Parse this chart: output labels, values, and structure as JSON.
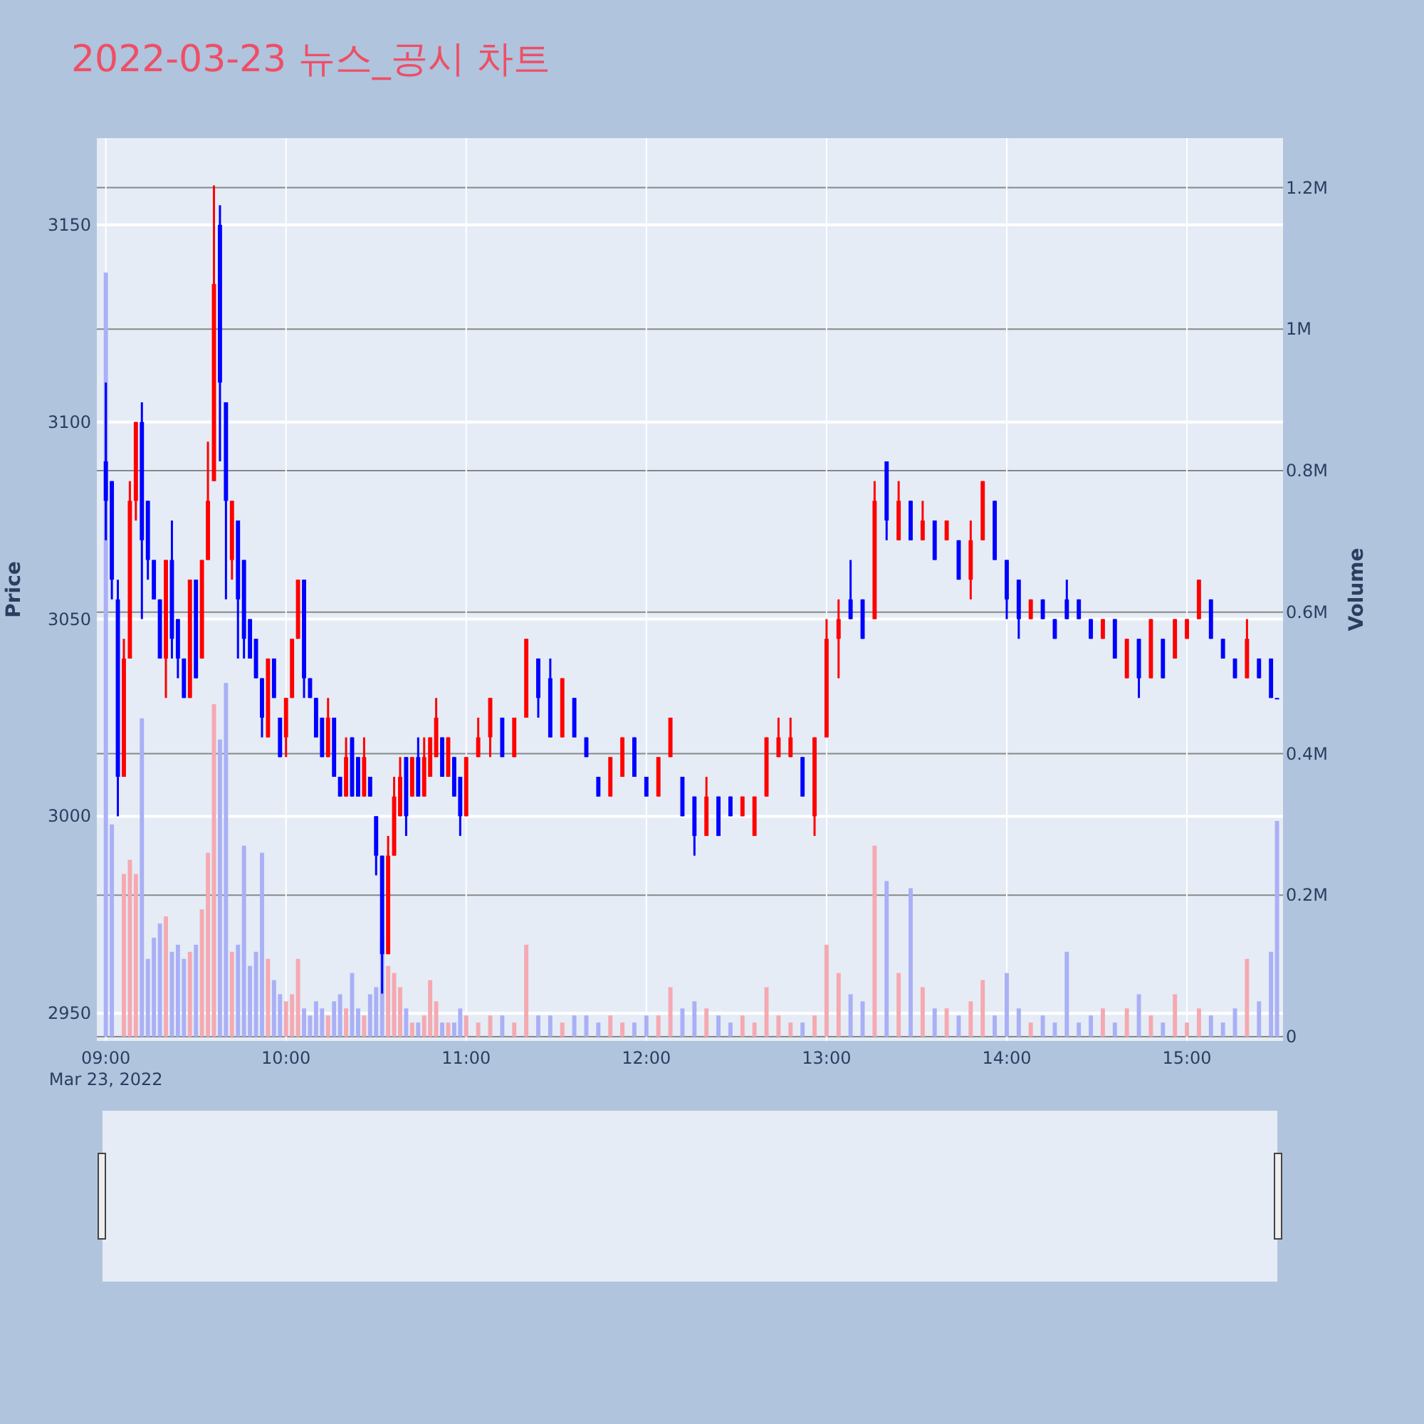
{
  "chart_data": {
    "type": "candlestick",
    "title": "2022-03-23 뉴스_공시 차트",
    "ylabel": "Price",
    "y2label": "Volume",
    "grid": true,
    "xlim": [
      "2022-03-23T08:57",
      "2022-03-23T15:32"
    ],
    "xticks": [
      {
        "value": "2022-03-23T09:00",
        "label": "09:00\nMar 23, 2022"
      },
      {
        "value": "2022-03-23T10:00",
        "label": "10:00"
      },
      {
        "value": "2022-03-23T11:00",
        "label": "11:00"
      },
      {
        "value": "2022-03-23T12:00",
        "label": "12:00"
      },
      {
        "value": "2022-03-23T13:00",
        "label": "13:00"
      },
      {
        "value": "2022-03-23T14:00",
        "label": "14:00"
      },
      {
        "value": "2022-03-23T15:00",
        "label": "15:00"
      }
    ],
    "ylim": [
      2943,
      3172
    ],
    "yticks": [
      2950,
      3000,
      3050,
      3100,
      3150
    ],
    "y2lim": [
      -6000,
      1270000
    ],
    "y2ticks": [
      0,
      {
        "value": 200000,
        "label": "0.2M"
      },
      {
        "value": 400000,
        "label": "0.4M"
      },
      {
        "value": 600000,
        "label": "0.6M"
      },
      {
        "value": 800000,
        "label": "0.8M"
      },
      {
        "value": 1000000,
        "label": "1M"
      },
      {
        "value": 1200000,
        "label": "1.2M"
      }
    ],
    "x": [
      "2022-03-23T09:00",
      "2022-03-23T09:02",
      "2022-03-23T09:04",
      "2022-03-23T09:06",
      "2022-03-23T09:08",
      "2022-03-23T09:10",
      "2022-03-23T09:12",
      "2022-03-23T09:14",
      "2022-03-23T09:16",
      "2022-03-23T09:18",
      "2022-03-23T09:20",
      "2022-03-23T09:22",
      "2022-03-23T09:24",
      "2022-03-23T09:26",
      "2022-03-23T09:28",
      "2022-03-23T09:30",
      "2022-03-23T09:32",
      "2022-03-23T09:34",
      "2022-03-23T09:36",
      "2022-03-23T09:38",
      "2022-03-23T09:40",
      "2022-03-23T09:42",
      "2022-03-23T09:44",
      "2022-03-23T09:46",
      "2022-03-23T09:48",
      "2022-03-23T09:50",
      "2022-03-23T09:52",
      "2022-03-23T09:54",
      "2022-03-23T09:56",
      "2022-03-23T09:58",
      "2022-03-23T10:00",
      "2022-03-23T10:02",
      "2022-03-23T10:04",
      "2022-03-23T10:06",
      "2022-03-23T10:08",
      "2022-03-23T10:10",
      "2022-03-23T10:12",
      "2022-03-23T10:14",
      "2022-03-23T10:16",
      "2022-03-23T10:18",
      "2022-03-23T10:20",
      "2022-03-23T10:22",
      "2022-03-23T10:24",
      "2022-03-23T10:26",
      "2022-03-23T10:28",
      "2022-03-23T10:30",
      "2022-03-23T10:32",
      "2022-03-23T10:34",
      "2022-03-23T10:36",
      "2022-03-23T10:38",
      "2022-03-23T10:40",
      "2022-03-23T10:42",
      "2022-03-23T10:44",
      "2022-03-23T10:46",
      "2022-03-23T10:48",
      "2022-03-23T10:50",
      "2022-03-23T10:52",
      "2022-03-23T10:54",
      "2022-03-23T10:56",
      "2022-03-23T10:58",
      "2022-03-23T11:00",
      "2022-03-23T11:04",
      "2022-03-23T11:08",
      "2022-03-23T11:12",
      "2022-03-23T11:16",
      "2022-03-23T11:20",
      "2022-03-23T11:24",
      "2022-03-23T11:28",
      "2022-03-23T11:32",
      "2022-03-23T11:36",
      "2022-03-23T11:40",
      "2022-03-23T11:44",
      "2022-03-23T11:48",
      "2022-03-23T11:52",
      "2022-03-23T11:56",
      "2022-03-23T12:00",
      "2022-03-23T12:04",
      "2022-03-23T12:08",
      "2022-03-23T12:12",
      "2022-03-23T12:16",
      "2022-03-23T12:20",
      "2022-03-23T12:24",
      "2022-03-23T12:28",
      "2022-03-23T12:32",
      "2022-03-23T12:36",
      "2022-03-23T12:40",
      "2022-03-23T12:44",
      "2022-03-23T12:48",
      "2022-03-23T12:52",
      "2022-03-23T12:56",
      "2022-03-23T13:00",
      "2022-03-23T13:04",
      "2022-03-23T13:08",
      "2022-03-23T13:12",
      "2022-03-23T13:16",
      "2022-03-23T13:20",
      "2022-03-23T13:24",
      "2022-03-23T13:28",
      "2022-03-23T13:32",
      "2022-03-23T13:36",
      "2022-03-23T13:40",
      "2022-03-23T13:44",
      "2022-03-23T13:48",
      "2022-03-23T13:52",
      "2022-03-23T13:56",
      "2022-03-23T14:00",
      "2022-03-23T14:04",
      "2022-03-23T14:08",
      "2022-03-23T14:12",
      "2022-03-23T14:16",
      "2022-03-23T14:20",
      "2022-03-23T14:24",
      "2022-03-23T14:28",
      "2022-03-23T14:32",
      "2022-03-23T14:36",
      "2022-03-23T14:40",
      "2022-03-23T14:44",
      "2022-03-23T14:48",
      "2022-03-23T14:52",
      "2022-03-23T14:56",
      "2022-03-23T15:00",
      "2022-03-23T15:04",
      "2022-03-23T15:08",
      "2022-03-23T15:12",
      "2022-03-23T15:16",
      "2022-03-23T15:20",
      "2022-03-23T15:24",
      "2022-03-23T15:28",
      "2022-03-23T15:30"
    ],
    "series": [
      {
        "ohlc": [
          [
            3090,
            3110,
            3070,
            3080
          ],
          [
            3085,
            3085,
            3055,
            3060
          ],
          [
            3055,
            3060,
            3000,
            3010
          ],
          [
            3010,
            3045,
            3010,
            3040
          ],
          [
            3040,
            3085,
            3040,
            3080
          ],
          [
            3080,
            3100,
            3075,
            3100
          ],
          [
            3100,
            3105,
            3050,
            3070
          ],
          [
            3080,
            3080,
            3060,
            3065
          ],
          [
            3065,
            3065,
            3055,
            3055
          ],
          [
            3055,
            3055,
            3040,
            3040
          ],
          [
            3040,
            3065,
            3030,
            3065
          ],
          [
            3065,
            3075,
            3040,
            3045
          ],
          [
            3050,
            3050,
            3035,
            3040
          ],
          [
            3040,
            3040,
            3030,
            3030
          ],
          [
            3030,
            3060,
            3030,
            3060
          ],
          [
            3060,
            3060,
            3035,
            3035
          ],
          [
            3040,
            3065,
            3040,
            3065
          ],
          [
            3065,
            3095,
            3065,
            3080
          ],
          [
            3085,
            3160,
            3085,
            3135
          ],
          [
            3150,
            3155,
            3090,
            3110
          ],
          [
            3105,
            3105,
            3055,
            3080
          ],
          [
            3065,
            3080,
            3060,
            3080
          ],
          [
            3075,
            3075,
            3040,
            3055
          ],
          [
            3065,
            3065,
            3040,
            3045
          ],
          [
            3050,
            3050,
            3040,
            3040
          ],
          [
            3045,
            3045,
            3035,
            3035
          ],
          [
            3035,
            3035,
            3020,
            3025
          ],
          [
            3020,
            3040,
            3020,
            3040
          ],
          [
            3040,
            3040,
            3030,
            3030
          ],
          [
            3025,
            3025,
            3015,
            3015
          ],
          [
            3020,
            3030,
            3015,
            3030
          ],
          [
            3030,
            3045,
            3030,
            3045
          ],
          [
            3045,
            3060,
            3045,
            3060
          ],
          [
            3060,
            3060,
            3030,
            3035
          ],
          [
            3035,
            3035,
            3030,
            3030
          ],
          [
            3030,
            3030,
            3020,
            3020
          ],
          [
            3025,
            3025,
            3015,
            3015
          ],
          [
            3015,
            3030,
            3015,
            3025
          ],
          [
            3025,
            3025,
            3010,
            3010
          ],
          [
            3010,
            3010,
            3005,
            3005
          ],
          [
            3005,
            3020,
            3005,
            3015
          ],
          [
            3020,
            3020,
            3005,
            3005
          ],
          [
            3015,
            3015,
            3005,
            3005
          ],
          [
            3005,
            3020,
            3005,
            3015
          ],
          [
            3010,
            3010,
            3005,
            3005
          ],
          [
            3000,
            3000,
            2985,
            2990
          ],
          [
            2990,
            2990,
            2955,
            2965
          ],
          [
            2965,
            2995,
            2965,
            2990
          ],
          [
            2990,
            3010,
            2990,
            3005
          ],
          [
            3000,
            3015,
            3000,
            3010
          ],
          [
            3015,
            3015,
            2995,
            3000
          ],
          [
            3005,
            3015,
            3005,
            3015
          ],
          [
            3015,
            3020,
            3005,
            3005
          ],
          [
            3005,
            3020,
            3005,
            3015
          ],
          [
            3010,
            3020,
            3010,
            3020
          ],
          [
            3015,
            3030,
            3015,
            3025
          ],
          [
            3020,
            3020,
            3010,
            3010
          ],
          [
            3010,
            3020,
            3010,
            3020
          ],
          [
            3015,
            3015,
            3005,
            3005
          ],
          [
            3010,
            3010,
            2995,
            3000
          ],
          [
            3000,
            3015,
            3000,
            3015
          ],
          [
            3015,
            3025,
            3015,
            3020
          ],
          [
            3020,
            3030,
            3015,
            3030
          ],
          [
            3025,
            3025,
            3015,
            3015
          ],
          [
            3015,
            3025,
            3015,
            3025
          ],
          [
            3025,
            3045,
            3025,
            3045
          ],
          [
            3040,
            3040,
            3025,
            3030
          ],
          [
            3035,
            3040,
            3020,
            3020
          ],
          [
            3020,
            3035,
            3020,
            3035
          ],
          [
            3030,
            3030,
            3020,
            3020
          ],
          [
            3020,
            3020,
            3015,
            3015
          ],
          [
            3010,
            3010,
            3005,
            3005
          ],
          [
            3005,
            3015,
            3005,
            3015
          ],
          [
            3010,
            3020,
            3010,
            3020
          ],
          [
            3020,
            3020,
            3010,
            3010
          ],
          [
            3010,
            3010,
            3005,
            3005
          ],
          [
            3005,
            3015,
            3005,
            3015
          ],
          [
            3015,
            3025,
            3015,
            3025
          ],
          [
            3010,
            3010,
            3000,
            3000
          ],
          [
            3005,
            3005,
            2990,
            2995
          ],
          [
            2995,
            3010,
            2995,
            3005
          ],
          [
            3005,
            3005,
            2995,
            2995
          ],
          [
            3005,
            3005,
            3000,
            3000
          ],
          [
            3000,
            3005,
            3000,
            3005
          ],
          [
            2995,
            3005,
            2995,
            3005
          ],
          [
            3005,
            3020,
            3005,
            3020
          ],
          [
            3015,
            3025,
            3015,
            3020
          ],
          [
            3015,
            3025,
            3015,
            3020
          ],
          [
            3015,
            3015,
            3005,
            3005
          ],
          [
            3000,
            3020,
            2995,
            3020
          ],
          [
            3020,
            3050,
            3020,
            3045
          ],
          [
            3045,
            3055,
            3035,
            3050
          ],
          [
            3055,
            3065,
            3050,
            3050
          ],
          [
            3055,
            3055,
            3045,
            3045
          ],
          [
            3050,
            3085,
            3050,
            3080
          ],
          [
            3090,
            3090,
            3070,
            3075
          ],
          [
            3070,
            3085,
            3070,
            3080
          ],
          [
            3080,
            3080,
            3070,
            3070
          ],
          [
            3070,
            3080,
            3070,
            3075
          ],
          [
            3075,
            3075,
            3065,
            3065
          ],
          [
            3070,
            3075,
            3070,
            3075
          ],
          [
            3070,
            3070,
            3060,
            3060
          ],
          [
            3060,
            3075,
            3055,
            3070
          ],
          [
            3070,
            3085,
            3070,
            3085
          ],
          [
            3080,
            3080,
            3065,
            3065
          ],
          [
            3065,
            3065,
            3050,
            3055
          ],
          [
            3060,
            3060,
            3045,
            3050
          ],
          [
            3050,
            3055,
            3050,
            3055
          ],
          [
            3055,
            3055,
            3050,
            3050
          ],
          [
            3050,
            3050,
            3045,
            3045
          ],
          [
            3055,
            3060,
            3050,
            3050
          ],
          [
            3055,
            3055,
            3050,
            3050
          ],
          [
            3050,
            3050,
            3045,
            3045
          ],
          [
            3045,
            3050,
            3045,
            3050
          ],
          [
            3050,
            3050,
            3040,
            3040
          ],
          [
            3035,
            3045,
            3035,
            3045
          ],
          [
            3045,
            3045,
            3030,
            3035
          ],
          [
            3035,
            3050,
            3035,
            3050
          ],
          [
            3045,
            3045,
            3035,
            3035
          ],
          [
            3040,
            3050,
            3040,
            3050
          ],
          [
            3045,
            3050,
            3045,
            3050
          ],
          [
            3050,
            3060,
            3050,
            3060
          ],
          [
            3055,
            3055,
            3045,
            3045
          ],
          [
            3045,
            3045,
            3040,
            3040
          ],
          [
            3040,
            3040,
            3035,
            3035
          ],
          [
            3035,
            3050,
            3035,
            3045
          ],
          [
            3040,
            3040,
            3035,
            3035
          ],
          [
            3040,
            3040,
            3030,
            3030
          ],
          [
            3030,
            3030,
            3030,
            3030
          ]
        ],
        "colors": [
          "#0000ff",
          "#0000ff",
          "#0000ff",
          "#ff0000",
          "#ff0000",
          "#ff0000",
          "#0000ff",
          "#0000ff",
          "#0000ff",
          "#0000ff",
          "#ff0000",
          "#0000ff",
          "#0000ff",
          "#0000ff",
          "#ff0000",
          "#0000ff",
          "#ff0000",
          "#ff0000",
          "#ff0000",
          "#0000ff",
          "#0000ff",
          "#ff0000",
          "#0000ff",
          "#0000ff",
          "#0000ff",
          "#0000ff",
          "#0000ff",
          "#ff0000",
          "#0000ff",
          "#0000ff",
          "#ff0000",
          "#ff0000",
          "#ff0000",
          "#0000ff",
          "#0000ff",
          "#0000ff",
          "#0000ff",
          "#ff0000",
          "#0000ff",
          "#0000ff",
          "#ff0000",
          "#0000ff",
          "#0000ff",
          "#ff0000",
          "#0000ff",
          "#0000ff",
          "#0000ff",
          "#ff0000",
          "#ff0000",
          "#ff0000",
          "#0000ff",
          "#ff0000",
          "#0000ff",
          "#ff0000",
          "#ff0000",
          "#ff0000",
          "#0000ff",
          "#ff0000",
          "#0000ff",
          "#0000ff",
          "#ff0000",
          "#ff0000",
          "#ff0000",
          "#0000ff",
          "#ff0000",
          "#ff0000",
          "#0000ff",
          "#0000ff",
          "#ff0000",
          "#0000ff",
          "#0000ff",
          "#0000ff",
          "#ff0000",
          "#ff0000",
          "#0000ff",
          "#0000ff",
          "#ff0000",
          "#ff0000",
          "#0000ff",
          "#0000ff",
          "#ff0000",
          "#0000ff",
          "#0000ff",
          "#ff0000",
          "#ff0000",
          "#ff0000",
          "#ff0000",
          "#ff0000",
          "#0000ff",
          "#ff0000",
          "#ff0000",
          "#ff0000",
          "#0000ff",
          "#0000ff",
          "#ff0000",
          "#0000ff",
          "#ff0000",
          "#0000ff",
          "#ff0000",
          "#0000ff",
          "#ff0000",
          "#0000ff",
          "#ff0000",
          "#ff0000",
          "#0000ff",
          "#0000ff",
          "#0000ff",
          "#ff0000",
          "#0000ff",
          "#0000ff",
          "#0000ff",
          "#0000ff",
          "#0000ff",
          "#ff0000",
          "#0000ff",
          "#ff0000",
          "#0000ff",
          "#ff0000",
          "#0000ff",
          "#ff0000",
          "#ff0000",
          "#ff0000",
          "#0000ff",
          "#0000ff",
          "#0000ff",
          "#ff0000",
          "#0000ff",
          "#0000ff",
          "#0000ff"
        ]
      },
      {
        "type": "bar",
        "axis": "y2",
        "values": [
          1080000,
          300000,
          null,
          230000,
          250000,
          230000,
          450000,
          110000,
          140000,
          160000,
          170000,
          120000,
          130000,
          110000,
          120000,
          130000,
          180000,
          260000,
          470000,
          420000,
          500000,
          120000,
          130000,
          270000,
          100000,
          120000,
          260000,
          110000,
          80000,
          60000,
          50000,
          60000,
          110000,
          40000,
          30000,
          50000,
          40000,
          30000,
          50000,
          60000,
          40000,
          90000,
          40000,
          30000,
          60000,
          70000,
          140000,
          100000,
          90000,
          70000,
          40000,
          20000,
          20000,
          30000,
          80000,
          50000,
          20000,
          20000,
          20000,
          40000,
          30000,
          20000,
          30000,
          30000,
          20000,
          130000,
          30000,
          30000,
          20000,
          30000,
          30000,
          20000,
          30000,
          20000,
          20000,
          30000,
          30000,
          70000,
          40000,
          50000,
          40000,
          30000,
          20000,
          30000,
          20000,
          70000,
          30000,
          20000,
          20000,
          30000,
          130000,
          90000,
          60000,
          50000,
          270000,
          220000,
          90000,
          210000,
          70000,
          40000,
          40000,
          30000,
          50000,
          80000,
          30000,
          90000,
          40000,
          20000,
          30000,
          20000,
          120000,
          20000,
          30000,
          40000,
          20000,
          40000,
          60000,
          30000,
          20000,
          60000,
          20000,
          40000,
          30000,
          20000,
          40000,
          110000,
          50000,
          120000,
          305000
        ],
        "colors": [
          "#aab0f5",
          "#aab0f5",
          null,
          "#f5a9b1",
          "#f5a9b1",
          "#f5a9b1",
          "#aab0f5",
          "#aab0f5",
          "#aab0f5",
          "#aab0f5",
          "#f5a9b1",
          "#aab0f5",
          "#aab0f5",
          "#aab0f5",
          "#f5a9b1",
          "#aab0f5",
          "#f5a9b1",
          "#f5a9b1",
          "#f5a9b1",
          "#aab0f5",
          "#aab0f5",
          "#f5a9b1",
          "#aab0f5",
          "#aab0f5",
          "#aab0f5",
          "#aab0f5",
          "#aab0f5",
          "#f5a9b1",
          "#aab0f5",
          "#aab0f5",
          "#f5a9b1",
          "#f5a9b1",
          "#f5a9b1",
          "#aab0f5",
          "#aab0f5",
          "#aab0f5",
          "#aab0f5",
          "#f5a9b1",
          "#aab0f5",
          "#aab0f5",
          "#f5a9b1",
          "#aab0f5",
          "#aab0f5",
          "#f5a9b1",
          "#aab0f5",
          "#aab0f5",
          "#aab0f5",
          "#f5a9b1",
          "#f5a9b1",
          "#f5a9b1",
          "#aab0f5",
          "#f5a9b1",
          "#aab0f5",
          "#f5a9b1",
          "#f5a9b1",
          "#f5a9b1",
          "#aab0f5",
          "#f5a9b1",
          "#aab0f5",
          "#aab0f5",
          "#f5a9b1",
          "#f5a9b1",
          "#f5a9b1",
          "#aab0f5",
          "#f5a9b1",
          "#f5a9b1",
          "#aab0f5",
          "#aab0f5",
          "#f5a9b1",
          "#aab0f5",
          "#aab0f5",
          "#aab0f5",
          "#f5a9b1",
          "#f5a9b1",
          "#aab0f5",
          "#aab0f5",
          "#f5a9b1",
          "#f5a9b1",
          "#aab0f5",
          "#aab0f5",
          "#f5a9b1",
          "#aab0f5",
          "#aab0f5",
          "#f5a9b1",
          "#f5a9b1",
          "#f5a9b1",
          "#f5a9b1",
          "#f5a9b1",
          "#aab0f5",
          "#f5a9b1",
          "#f5a9b1",
          "#f5a9b1",
          "#aab0f5",
          "#aab0f5",
          "#f5a9b1",
          "#aab0f5",
          "#f5a9b1",
          "#aab0f5",
          "#f5a9b1",
          "#aab0f5",
          "#f5a9b1",
          "#aab0f5",
          "#f5a9b1",
          "#f5a9b1",
          "#aab0f5",
          "#aab0f5",
          "#aab0f5",
          "#f5a9b1",
          "#aab0f5",
          "#aab0f5",
          "#aab0f5",
          "#aab0f5",
          "#aab0f5",
          "#f5a9b1",
          "#aab0f5",
          "#f5a9b1",
          "#aab0f5",
          "#f5a9b1",
          "#aab0f5",
          "#f5a9b1",
          "#f5a9b1",
          "#f5a9b1",
          "#aab0f5",
          "#aab0f5",
          "#aab0f5",
          "#f5a9b1",
          "#aab0f5",
          "#aab0f5",
          "#aab0f5"
        ]
      }
    ]
  }
}
